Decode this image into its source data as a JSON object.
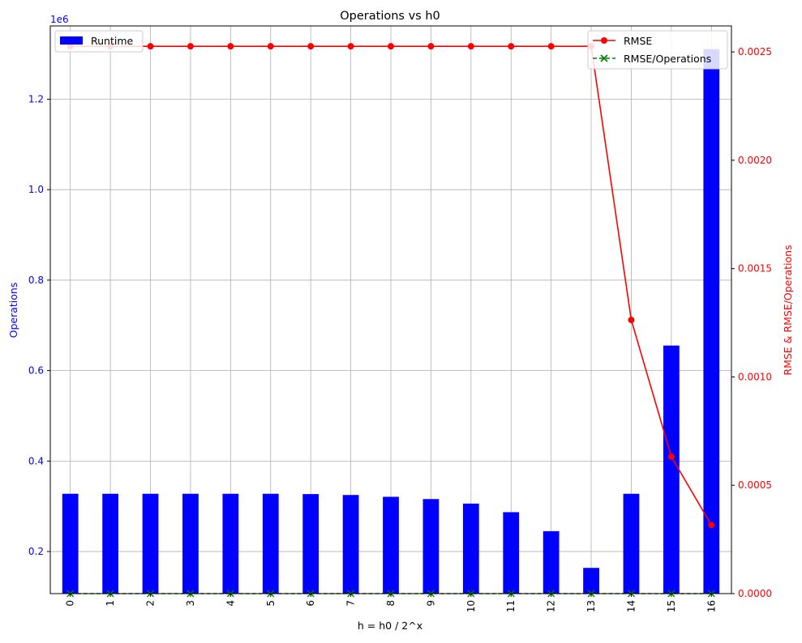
{
  "chart_data": {
    "type": "bar",
    "title": "Operations vs h0",
    "xlabel": "h = h0 / 2^x",
    "ylabel_left": "Operations",
    "ylabel_right": "RMSE & RMSE/Operations",
    "left_axis_offset_label": "1e6",
    "categories": [
      "0",
      "1",
      "2",
      "3",
      "4",
      "5",
      "6",
      "7",
      "8",
      "9",
      "10",
      "11",
      "12",
      "13",
      "14",
      "15",
      "16"
    ],
    "left_ylim": [
      107000,
      1362000
    ],
    "right_ylim": [
      0,
      0.00262
    ],
    "left_yticks": [
      0.2,
      0.4,
      0.6,
      0.8,
      1.0,
      1.2
    ],
    "right_yticks": [
      "0.0000",
      "0.0005",
      "0.0010",
      "0.0015",
      "0.0020",
      "0.0025"
    ],
    "right_ytick_values": [
      0,
      0.0005,
      0.001,
      0.0015,
      0.002,
      0.0025
    ],
    "grid": true,
    "legend_left": {
      "placement": "top-left",
      "label": "Runtime"
    },
    "legend_right": {
      "placement": "top-right",
      "labels": [
        "RMSE",
        "RMSE/Operations"
      ]
    },
    "series": [
      {
        "name": "Runtime",
        "axis": "left",
        "kind": "bar",
        "color": "#0000ff",
        "values": [
          327680,
          327680,
          327680,
          327680,
          327680,
          327680,
          327000,
          325000,
          321000,
          316000,
          306000,
          287000,
          245000,
          163840,
          327680,
          655360,
          1310720
        ]
      },
      {
        "name": "RMSE",
        "axis": "right",
        "kind": "line",
        "color": "#ff0000",
        "marker": "circle",
        "values": [
          0.002526,
          0.002526,
          0.002526,
          0.002526,
          0.002526,
          0.002526,
          0.002526,
          0.002526,
          0.002526,
          0.002526,
          0.002526,
          0.002526,
          0.002526,
          0.002526,
          0.001263,
          0.000632,
          0.000316
        ]
      },
      {
        "name": "RMSE/Operations",
        "axis": "right",
        "kind": "line",
        "color": "#008000",
        "marker": "x",
        "dashed": true,
        "values": [
          7.7e-09,
          7.7e-09,
          7.7e-09,
          7.7e-09,
          7.7e-09,
          7.7e-09,
          7.7e-09,
          7.8e-09,
          7.9e-09,
          8e-09,
          8.3e-09,
          8.8e-09,
          1.03e-08,
          1.54e-08,
          3.9e-09,
          9.6e-10,
          2.4e-10
        ]
      }
    ]
  }
}
